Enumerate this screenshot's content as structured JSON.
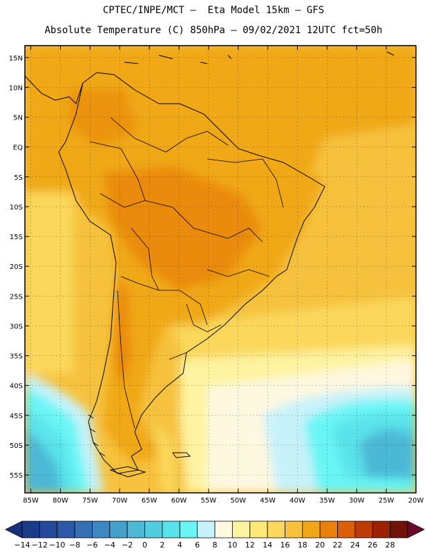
{
  "title_line1": "CPTEC/INPE/MCT –  Eta Model 15km – GFS",
  "title_line2": "Absolute Temperature (C) 850hPa – 09/02/2021 12UTC fct=50h",
  "chart_data": {
    "type": "heatmap",
    "title": "Absolute Temperature (C) 850hPa",
    "subtitle": "CPTEC/INPE/MCT – Eta Model 15km – GFS, 09/02/2021 12UTC fct=50h",
    "lat_range": [
      -58,
      17
    ],
    "lon_range": [
      -86,
      -20
    ],
    "lat_ticks": [
      "15N",
      "10N",
      "5N",
      "EQ",
      "5S",
      "10S",
      "15S",
      "20S",
      "25S",
      "30S",
      "35S",
      "40S",
      "45S",
      "50S",
      "55S"
    ],
    "lon_ticks": [
      "85W",
      "80W",
      "75W",
      "70W",
      "65W",
      "60W",
      "55W",
      "50W",
      "45W",
      "40W",
      "35W",
      "30W",
      "25W",
      "20W"
    ],
    "colorbar": {
      "labels": [
        "-14",
        "-12",
        "-10",
        "-8",
        "-6",
        "-4",
        "-2",
        "0",
        "2",
        "4",
        "6",
        "8",
        "10",
        "12",
        "14",
        "16",
        "18",
        "20",
        "22",
        "24",
        "26",
        "28"
      ],
      "colors": [
        "#1a3a8a",
        "#23499a",
        "#2d5aa8",
        "#3570b4",
        "#3d88c2",
        "#45a0cc",
        "#4cb8d6",
        "#52cde0",
        "#5ae2ea",
        "#6af5f5",
        "#c8f2fa",
        "#fff8e0",
        "#fef3a0",
        "#fde878",
        "#fbd85c",
        "#f6c23e",
        "#f0a818",
        "#e8820c",
        "#dc5e08",
        "#c03c06",
        "#9c2206",
        "#701208"
      ]
    },
    "temperature_field": [
      {
        "lat": 12,
        "lon": -75,
        "t": 19
      },
      {
        "lat": 5,
        "lon": -70,
        "t": 19
      },
      {
        "lat": 0,
        "lon": -60,
        "t": 18
      },
      {
        "lat": -10,
        "lon": -55,
        "t": 19
      },
      {
        "lat": -18,
        "lon": -48,
        "t": 20
      },
      {
        "lat": -30,
        "lon": -68,
        "t": 20
      },
      {
        "lat": -42,
        "lon": -70,
        "t": 19
      },
      {
        "lat": -50,
        "lon": -66,
        "t": 19
      },
      {
        "lat": 10,
        "lon": -40,
        "t": 17
      },
      {
        "lat": 0,
        "lon": -30,
        "t": 16
      },
      {
        "lat": -15,
        "lon": -28,
        "t": 16
      },
      {
        "lat": -30,
        "lon": -40,
        "t": 14
      },
      {
        "lat": -38,
        "lon": -45,
        "t": 7
      },
      {
        "lat": -45,
        "lon": -40,
        "t": 5
      },
      {
        "lat": -48,
        "lon": -28,
        "t": 1
      },
      {
        "lat": -55,
        "lon": -35,
        "t": 3
      },
      {
        "lat": -45,
        "lon": -82,
        "t": 3
      },
      {
        "lat": -52,
        "lon": -82,
        "t": 0
      },
      {
        "lat": -55,
        "lon": -60,
        "t": 11
      }
    ]
  }
}
